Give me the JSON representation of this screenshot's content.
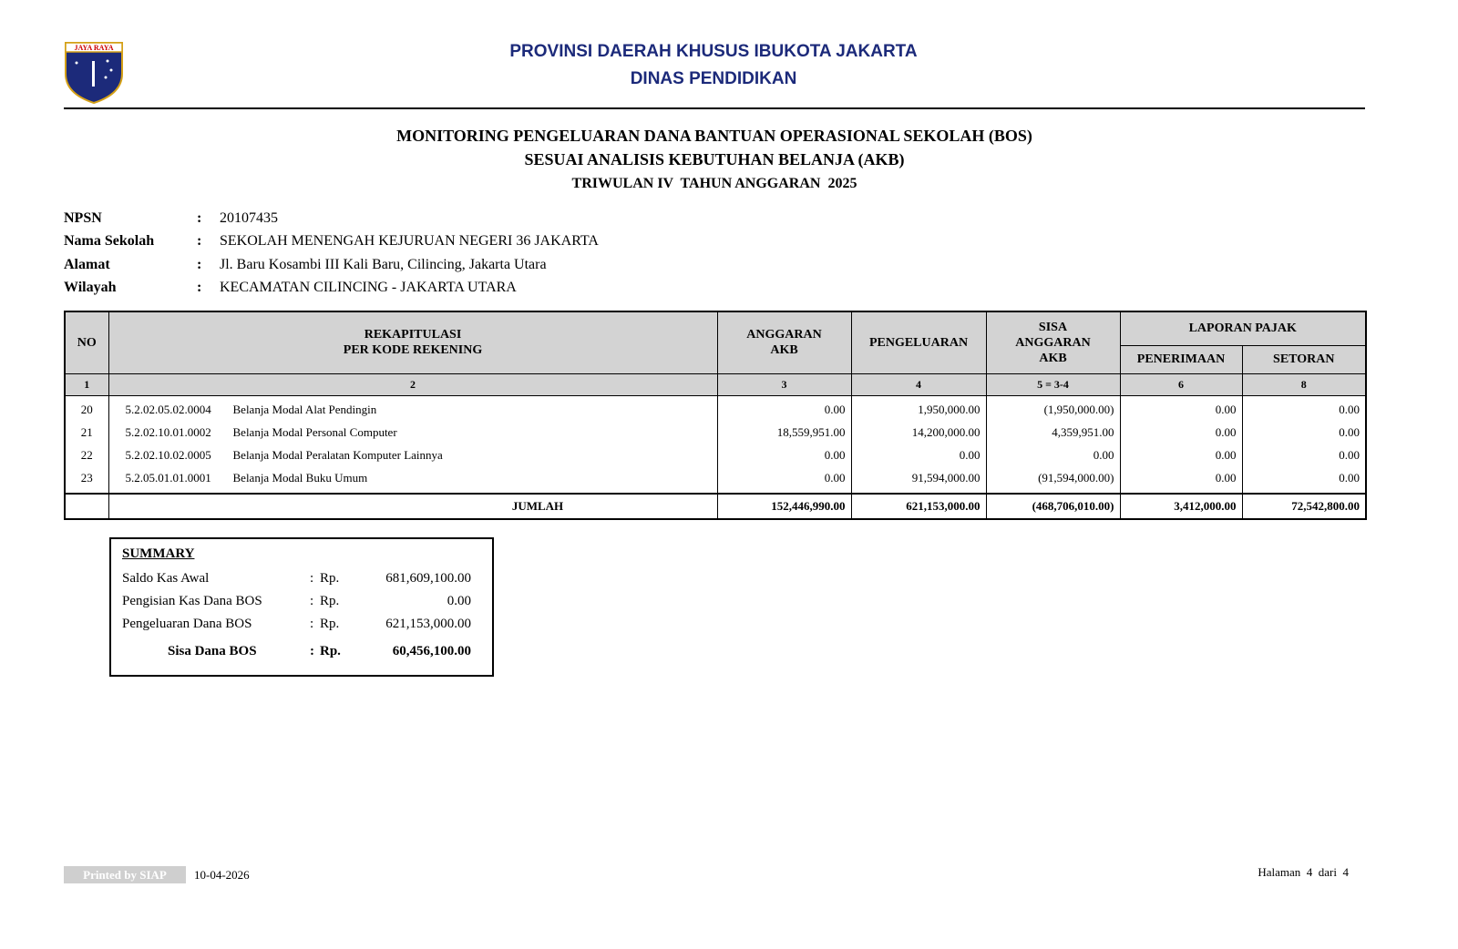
{
  "header": {
    "logo_text": "JAYA RAYA",
    "line1": "PROVINSI DAERAH KHUSUS IBUKOTA JAKARTA",
    "line2": "DINAS PENDIDIKAN"
  },
  "title": {
    "line1": "MONITORING PENGELUARAN DANA BANTUAN OPERASIONAL SEKOLAH (BOS)",
    "line2": "SESUAI ANALISIS KEBUTUHAN BELANJA (AKB)",
    "line3": "TRIWULAN IV  TAHUN ANGGARAN  2025"
  },
  "info": [
    {
      "label": "NPSN",
      "sep": ":",
      "value": "20107435"
    },
    {
      "label": "Nama Sekolah",
      "sep": ":",
      "value": "SEKOLAH MENENGAH KEJURUAN NEGERI 36 JAKARTA"
    },
    {
      "label": "Alamat",
      "sep": ":",
      "value": "Jl. Baru Kosambi III Kali Baru, Cilincing, Jakarta Utara"
    },
    {
      "label": "Wilayah",
      "sep": ":",
      "value": "KECAMATAN CILINCING - JAKARTA UTARA"
    }
  ],
  "table": {
    "headers": {
      "no": "NO",
      "rekap": [
        "REKAPITULASI",
        "PER KODE REKENING"
      ],
      "anggaran": [
        "ANGGARAN",
        "AKB"
      ],
      "pengeluaran": "PENGELUARAN",
      "sisa": [
        "SISA",
        "ANGGARAN",
        "AKB"
      ],
      "pajak": "LAPORAN PAJAK",
      "penerimaan": "PENERIMAAN",
      "setoran": "SETORAN"
    },
    "column_numbers": [
      "1",
      "2",
      "3",
      "4",
      "5 = 3-4",
      "6",
      "8"
    ],
    "rows": [
      [
        "20",
        "5.2.02.05.02.0004",
        "Belanja Modal Alat Pendingin",
        "0.00",
        "1,950,000.00",
        "(1,950,000.00)",
        "0.00",
        "0.00"
      ],
      [
        "21",
        "5.2.02.10.01.0002",
        "Belanja Modal Personal Computer",
        "18,559,951.00",
        "14,200,000.00",
        "4,359,951.00",
        "0.00",
        "0.00"
      ],
      [
        "22",
        "5.2.02.10.02.0005",
        "Belanja Modal Peralatan Komputer Lainnya",
        "0.00",
        "0.00",
        "0.00",
        "0.00",
        "0.00"
      ],
      [
        "23",
        "5.2.05.01.01.0001",
        "Belanja Modal Buku Umum",
        "0.00",
        "91,594,000.00",
        "(91,594,000.00)",
        "0.00",
        "0.00"
      ]
    ],
    "total": {
      "label": "JUMLAH",
      "values": [
        "152,446,990.00",
        "621,153,000.00",
        "(468,706,010.00)",
        "3,412,000.00",
        "72,542,800.00"
      ]
    }
  },
  "summary": {
    "title": "SUMMARY",
    "rows": [
      {
        "label": "Saldo Kas Awal",
        "sep": ":",
        "currency": "Rp.",
        "value": "681,609,100.00"
      },
      {
        "label": "Pengisian Kas Dana BOS",
        "sep": ":",
        "currency": "Rp.",
        "value": "0.00"
      },
      {
        "label": "Pengeluaran Dana BOS",
        "sep": ":",
        "currency": "Rp.",
        "value": "621,153,000.00"
      }
    ],
    "total": {
      "label": "Sisa Dana BOS",
      "sep": ":",
      "currency": "Rp.",
      "value": "60,456,100.00"
    }
  },
  "footer": {
    "printed_by": "Printed by SIAP",
    "date": "10-04-2026",
    "page": "Halaman  4  dari  4"
  }
}
